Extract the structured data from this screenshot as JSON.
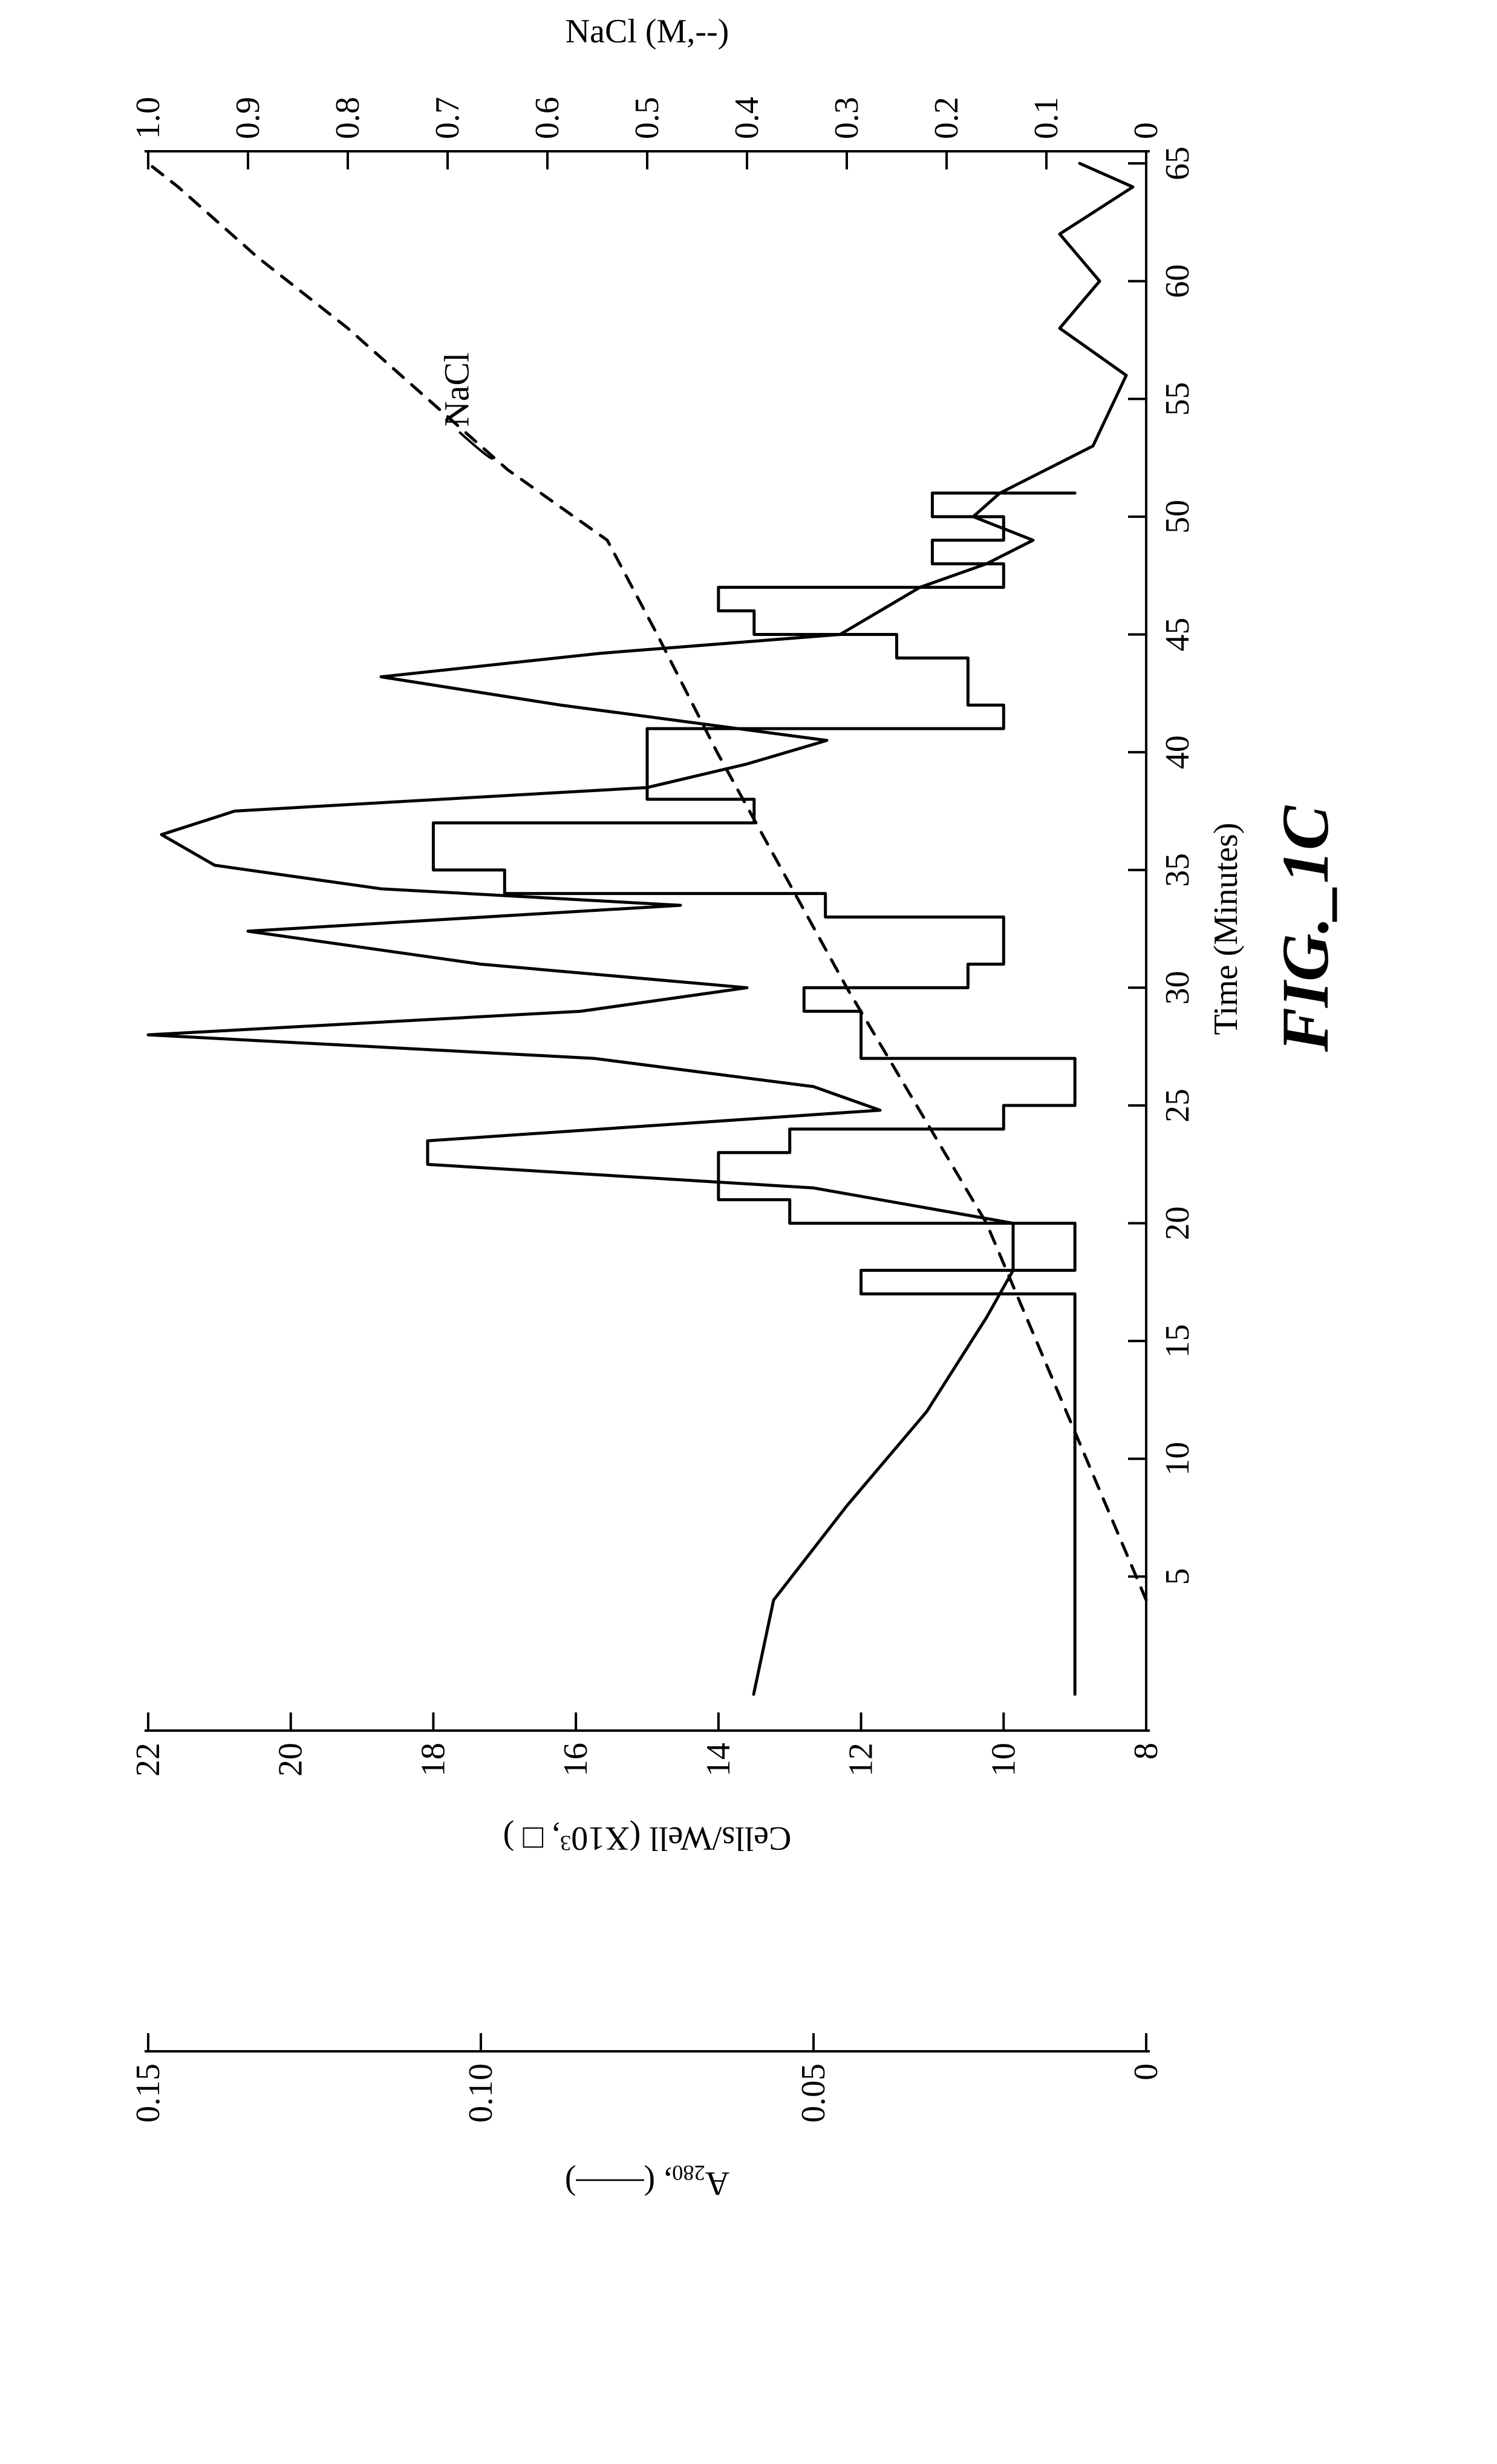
{
  "figure_caption": "FIG._1C",
  "x_axis": {
    "label": "Time (Minutes)",
    "min": 0,
    "max": 65,
    "ticks": [
      5,
      10,
      15,
      20,
      25,
      30,
      35,
      40,
      45,
      50,
      55,
      60,
      65
    ],
    "label_fontsize": 56,
    "tick_fontsize": 56
  },
  "y_left_outer": {
    "label": "A₂₈₀, (——)",
    "min": 0,
    "max": 0.15,
    "ticks": [
      0,
      0.05,
      0.1,
      0.15
    ],
    "tick_labels": [
      "0",
      "0.05",
      "0.10",
      "0.15"
    ],
    "label_fontsize": 56,
    "tick_fontsize": 56
  },
  "y_left_inner": {
    "label": "Cells/Well (X10³, □ )",
    "min": 8,
    "max": 22,
    "ticks": [
      8,
      10,
      12,
      14,
      16,
      18,
      20,
      22
    ],
    "label_fontsize": 56,
    "tick_fontsize": 56
  },
  "y_right": {
    "label": "NaCl (M,--)",
    "min": 0,
    "max": 1.0,
    "ticks": [
      0,
      0.1,
      0.2,
      0.3,
      0.4,
      0.5,
      0.6,
      0.7,
      0.8,
      0.9,
      1.0
    ],
    "tick_labels": [
      "0",
      "0.1",
      "0.2",
      "0.3",
      "0.4",
      "0.5",
      "0.6",
      "0.7",
      "0.8",
      "0.9",
      "1.0"
    ],
    "label_fontsize": 56,
    "tick_fontsize": 56
  },
  "nacl_series": {
    "annotation": "NaCl",
    "annotation_xy": [
      51,
      0.69
    ],
    "stroke_width": 5,
    "dash": "22 18",
    "points": [
      [
        4,
        0.0
      ],
      [
        10,
        0.06
      ],
      [
        15,
        0.11
      ],
      [
        20,
        0.16
      ],
      [
        25,
        0.23
      ],
      [
        30,
        0.3
      ],
      [
        35,
        0.365
      ],
      [
        40,
        0.43
      ],
      [
        45,
        0.49
      ],
      [
        49,
        0.54
      ],
      [
        52,
        0.64
      ],
      [
        55,
        0.72
      ],
      [
        58,
        0.8
      ],
      [
        61,
        0.89
      ],
      [
        64,
        0.97
      ],
      [
        65,
        1.0
      ]
    ]
  },
  "a280_series": {
    "stroke_width": 5,
    "points": [
      [
        0,
        0.059
      ],
      [
        4,
        0.056
      ],
      [
        8,
        0.045
      ],
      [
        12,
        0.033
      ],
      [
        16,
        0.024
      ],
      [
        18,
        0.02
      ],
      [
        20,
        0.02
      ],
      [
        21.5,
        0.05
      ],
      [
        22.5,
        0.108
      ],
      [
        23.5,
        0.108
      ],
      [
        24.8,
        0.04
      ],
      [
        25.8,
        0.05
      ],
      [
        27,
        0.083
      ],
      [
        28,
        0.15
      ],
      [
        29,
        0.085
      ],
      [
        30,
        0.06
      ],
      [
        31,
        0.1
      ],
      [
        32.4,
        0.135
      ],
      [
        33.5,
        0.07
      ],
      [
        34.2,
        0.115
      ],
      [
        35.2,
        0.14
      ],
      [
        36.5,
        0.148
      ],
      [
        37.5,
        0.137
      ],
      [
        38.5,
        0.075
      ],
      [
        39.5,
        0.06
      ],
      [
        40.5,
        0.048
      ],
      [
        42,
        0.088
      ],
      [
        43.2,
        0.115
      ],
      [
        44.2,
        0.082
      ],
      [
        45,
        0.046
      ],
      [
        46,
        0.04
      ],
      [
        47,
        0.034
      ],
      [
        48,
        0.024
      ],
      [
        49,
        0.017
      ],
      [
        50,
        0.026
      ],
      [
        51,
        0.022
      ],
      [
        53,
        0.008
      ],
      [
        56,
        0.003
      ],
      [
        58,
        0.013
      ],
      [
        60,
        0.007
      ],
      [
        62,
        0.013
      ],
      [
        64,
        0.002
      ],
      [
        65,
        0.01
      ]
    ]
  },
  "cells_series": {
    "stroke_width": 5,
    "steps": [
      [
        0,
        9
      ],
      [
        16,
        9
      ],
      [
        17,
        9
      ],
      [
        17,
        12
      ],
      [
        18,
        12
      ],
      [
        18,
        9
      ],
      [
        20,
        9
      ],
      [
        20,
        13
      ],
      [
        21,
        13
      ],
      [
        21,
        14
      ],
      [
        23,
        14
      ],
      [
        23,
        13
      ],
      [
        24,
        13
      ],
      [
        24,
        10
      ],
      [
        25,
        10
      ],
      [
        25,
        9
      ],
      [
        27,
        9
      ],
      [
        27,
        12
      ],
      [
        29,
        12
      ],
      [
        29,
        12.8
      ],
      [
        30,
        12.8
      ],
      [
        30,
        10.5
      ],
      [
        31,
        10.5
      ],
      [
        31,
        10
      ],
      [
        33,
        10
      ],
      [
        33,
        12.5
      ],
      [
        34,
        12.5
      ],
      [
        34,
        17
      ],
      [
        35,
        17
      ],
      [
        35,
        18
      ],
      [
        37,
        18
      ],
      [
        37,
        13.5
      ],
      [
        38,
        13.5
      ],
      [
        38,
        15
      ],
      [
        41,
        15
      ],
      [
        41,
        10
      ],
      [
        42,
        10
      ],
      [
        42,
        10.5
      ],
      [
        44,
        10.5
      ],
      [
        44,
        11.5
      ],
      [
        45,
        11.5
      ],
      [
        45,
        13.5
      ],
      [
        46,
        13.5
      ],
      [
        46,
        14
      ],
      [
        47,
        14
      ],
      [
        47,
        10
      ],
      [
        48,
        10
      ],
      [
        48,
        11
      ],
      [
        49,
        11
      ],
      [
        49,
        10
      ],
      [
        50,
        10
      ],
      [
        50,
        11
      ],
      [
        51,
        11
      ],
      [
        51,
        9
      ]
    ]
  },
  "style": {
    "background": "#ffffff",
    "stroke": "#000000",
    "caption_fontsize": 110,
    "caption_style": "italic"
  }
}
